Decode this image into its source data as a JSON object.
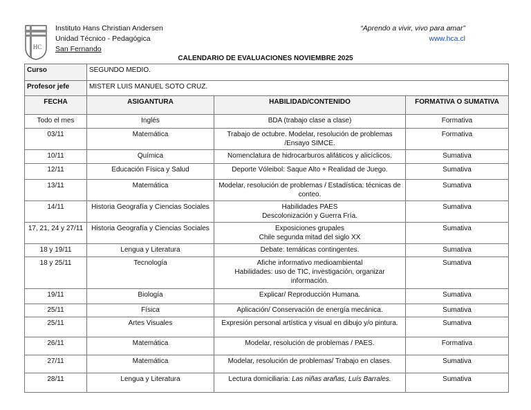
{
  "header": {
    "institution": "Instituto Hans Christian Andersen",
    "unit": "Unidad Técnico - Pedagógica",
    "city": "San Fernando",
    "motto": "“Aprendo a vivir, vivo para amar”",
    "website": "www.hca.cl",
    "logo_text": "HCA"
  },
  "title": "CALENDARIO DE EVALUACIONES NOVIEMBRE 2025",
  "info": {
    "curso_label": "Curso",
    "curso_value": "SEGUNDO MEDIO.",
    "profesor_label": "Profesor jefe",
    "profesor_value": "MISTER LUIS MANUEL SOTO CRUZ."
  },
  "columns": [
    "FECHA",
    "ASIGANTURA",
    "HABILIDAD/CONTENIDO",
    "FORMATIVA O SUMATIVA"
  ],
  "rows": [
    {
      "fecha": "Todo el mes",
      "asignatura": "Inglés",
      "contenido": "BDA (trabajo clase a clase)",
      "tipo": "Formativa"
    },
    {
      "fecha": "03/11",
      "asignatura": "Matemática",
      "contenido": "Trabajo de octubre. Modelar, resolución de problemas /Ensayo SIMCE.",
      "tipo": "Formativa"
    },
    {
      "fecha": "10/11",
      "asignatura": "Química",
      "contenido": "Nomenclatura de hidrocarburos alifáticos y alicíclicos.",
      "tipo": "Sumativa"
    },
    {
      "fecha": "12/11",
      "asignatura": "Educación Física y Salud",
      "contenido": "Deporte Vóleibol: Saque Alto + Realidad de Juego.",
      "tipo": "Sumativa"
    },
    {
      "fecha": "13/11",
      "asignatura": "Matemática",
      "contenido": "Modelar, resolución de problemas / Estadística: técnicas de conteo.",
      "tipo": "Sumativa"
    },
    {
      "fecha": "14/11",
      "asignatura": "Historia Geografía y Ciencias Sociales",
      "contenido": "Habilidades PAES\nDescolonización y Guerra Fría.",
      "tipo": "Sumativa"
    },
    {
      "fecha": "17, 21, 24 y 27/11",
      "asignatura": "Historia Geografía y Ciencias Sociales",
      "contenido": "Exposiciones grupales\nChile segunda mitad del siglo XX",
      "tipo": "Sumativa"
    },
    {
      "fecha": "18 y 19/11",
      "asignatura": "Lengua y Literatura",
      "contenido": "Debate: temáticas contingentes.",
      "tipo": "Sumativa"
    },
    {
      "fecha": "18 y 25/11",
      "asignatura": "Tecnología",
      "contenido": "Afiche informativo medioambiental\nHabilidades: uso de TIC, investigación, organizar información.",
      "tipo": "Sumativa"
    },
    {
      "fecha": "19/11",
      "asignatura": "Biología",
      "contenido": "Explicar/ Reproducción Humana.",
      "tipo": "Sumativa"
    },
    {
      "fecha": "25/11",
      "asignatura": "Física",
      "contenido": "Aplicación/ Conservación de energía mecánica.",
      "tipo": "Sumativa"
    },
    {
      "fecha": "25/11",
      "asignatura": "Artes Visuales",
      "contenido": "Expresión personal artística y visual en dibujo y/o pintura.",
      "tipo": "Sumativa"
    },
    {
      "fecha": "26/11",
      "asignatura": "Matemática",
      "contenido": "Modelar, resolución de problemas / PAES.",
      "tipo": "Formativa"
    },
    {
      "fecha": "27/11",
      "asignatura": "Matemática",
      "contenido": "Modelar, resolución de problemas/ Trabajo en clases.",
      "tipo": "Sumativa"
    }
  ],
  "last_row": {
    "fecha": "28/11",
    "asignatura": "Lengua y Literatura",
    "contenido_prefix": "Lectura domiciliaria: ",
    "contenido_italic": "Las niñas arañas, Luís Barrales.",
    "tipo": "Sumativa"
  }
}
